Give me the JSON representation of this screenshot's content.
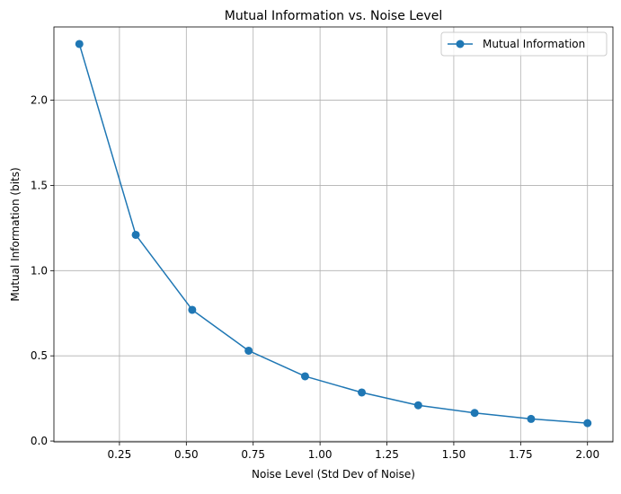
{
  "chart_data": {
    "type": "line",
    "title": "Mutual Information vs. Noise Level",
    "xlabel": "Noise Level (Std Dev of Noise)",
    "ylabel": "Mutual Information (bits)",
    "xlim": [
      0.005,
      2.095
    ],
    "ylim": [
      -0.005,
      2.43
    ],
    "xticks": [
      0.25,
      0.5,
      0.75,
      1.0,
      1.25,
      1.5,
      1.75,
      2.0
    ],
    "xtick_labels": [
      "0.25",
      "0.50",
      "0.75",
      "1.00",
      "1.25",
      "1.50",
      "1.75",
      "2.00"
    ],
    "yticks": [
      0.0,
      0.5,
      1.0,
      1.5,
      2.0
    ],
    "ytick_labels": [
      "0.0",
      "0.5",
      "1.0",
      "1.5",
      "2.0"
    ],
    "grid": true,
    "legend_position": "top-right",
    "series": [
      {
        "name": "Mutual Information",
        "color": "#1f77b4",
        "marker": "circle",
        "x": [
          0.1,
          0.311,
          0.522,
          0.733,
          0.944,
          1.156,
          1.367,
          1.578,
          1.789,
          2.0
        ],
        "y": [
          2.33,
          1.21,
          0.77,
          0.53,
          0.38,
          0.285,
          0.21,
          0.165,
          0.13,
          0.105
        ]
      }
    ]
  }
}
